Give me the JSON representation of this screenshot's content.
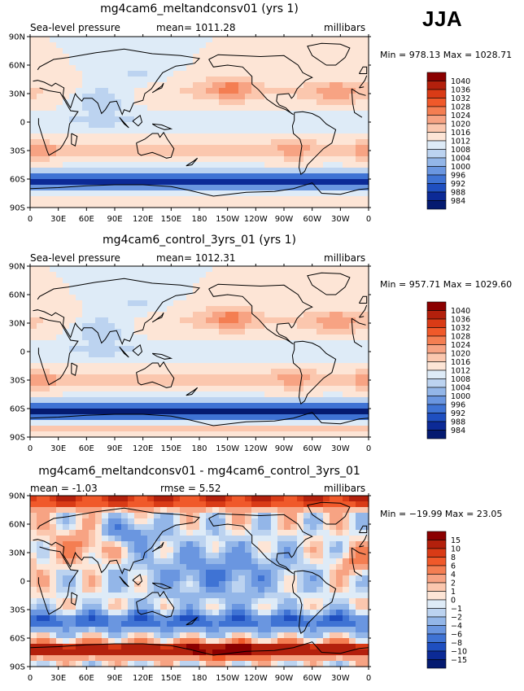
{
  "season": "JJA",
  "chart_data": [
    {
      "type": "heatmap",
      "title": "mg4cam6_meltandconsv01 (yrs 1)",
      "left_label": "Sea-level pressure",
      "center_label": "mean= 1011.28",
      "units": "millibars",
      "minmax": "Min = 978.13 Max = 1028.71",
      "x_ticks": [
        "0",
        "30E",
        "60E",
        "90E",
        "120E",
        "150E",
        "180",
        "150W",
        "120W",
        "90W",
        "60W",
        "30W",
        "0"
      ],
      "y_ticks": [
        "90N",
        "60N",
        "30N",
        "0",
        "30S",
        "60S",
        "90S"
      ],
      "colorbar_levels": [
        "1040",
        "1036",
        "1032",
        "1028",
        "1024",
        "1020",
        "1016",
        "1012",
        "1008",
        "1004",
        "1000",
        "996",
        "992",
        "988",
        "984"
      ],
      "colorbar_colors": [
        "#8b0000",
        "#b3200c",
        "#d93b16",
        "#f0592a",
        "#f47e52",
        "#f7a383",
        "#fbc7ae",
        "#fde5d6",
        "#deebf7",
        "#bcd3f0",
        "#93b6e8",
        "#6a96e0",
        "#3f73d4",
        "#1f4fc0",
        "#0c2a96",
        "#041a70"
      ],
      "mean_field": "slp"
    },
    {
      "type": "heatmap",
      "title": "mg4cam6_control_3yrs_01 (yrs 1)",
      "left_label": "Sea-level pressure",
      "center_label": "mean= 1012.31",
      "units": "millibars",
      "minmax": "Min = 957.71 Max = 1029.60",
      "x_ticks": [
        "0",
        "30E",
        "60E",
        "90E",
        "120E",
        "150E",
        "180",
        "150W",
        "120W",
        "90W",
        "60W",
        "30W",
        "0"
      ],
      "y_ticks": [
        "90N",
        "60N",
        "30N",
        "0",
        "30S",
        "60S",
        "90S"
      ],
      "colorbar_levels": [
        "1040",
        "1036",
        "1032",
        "1028",
        "1024",
        "1020",
        "1016",
        "1012",
        "1008",
        "1004",
        "1000",
        "996",
        "992",
        "988",
        "984"
      ],
      "colorbar_colors": [
        "#8b0000",
        "#b3200c",
        "#d93b16",
        "#f0592a",
        "#f47e52",
        "#f7a383",
        "#fbc7ae",
        "#fde5d6",
        "#deebf7",
        "#bcd3f0",
        "#93b6e8",
        "#6a96e0",
        "#3f73d4",
        "#1f4fc0",
        "#0c2a96",
        "#041a70"
      ],
      "mean_field": "slp"
    },
    {
      "type": "heatmap",
      "title": "mg4cam6_meltandconsv01 - mg4cam6_control_3yrs_01",
      "left_label": "mean = -1.03",
      "center_label": "rmse = 5.52",
      "units": "millibars",
      "minmax": "Min = −19.99 Max = 23.05",
      "x_ticks": [
        "0",
        "30E",
        "60E",
        "90E",
        "120E",
        "150E",
        "180",
        "150W",
        "120W",
        "90W",
        "60W",
        "30W",
        "0"
      ],
      "y_ticks": [
        "90N",
        "60N",
        "30N",
        "0",
        "30S",
        "60S",
        "90S"
      ],
      "colorbar_levels": [
        "15",
        "10",
        "8",
        "6",
        "4",
        "2",
        "1",
        "0",
        "−1",
        "−2",
        "−4",
        "−6",
        "−8",
        "−10",
        "−15"
      ],
      "colorbar_colors": [
        "#8b0000",
        "#b3200c",
        "#d93b16",
        "#f0592a",
        "#f47e52",
        "#f7a383",
        "#fbc7ae",
        "#fde5d6",
        "#deebf7",
        "#bcd3f0",
        "#93b6e8",
        "#6a96e0",
        "#3f73d4",
        "#1f4fc0",
        "#0c2a96",
        "#041a70"
      ],
      "mean_field": "diff"
    }
  ]
}
